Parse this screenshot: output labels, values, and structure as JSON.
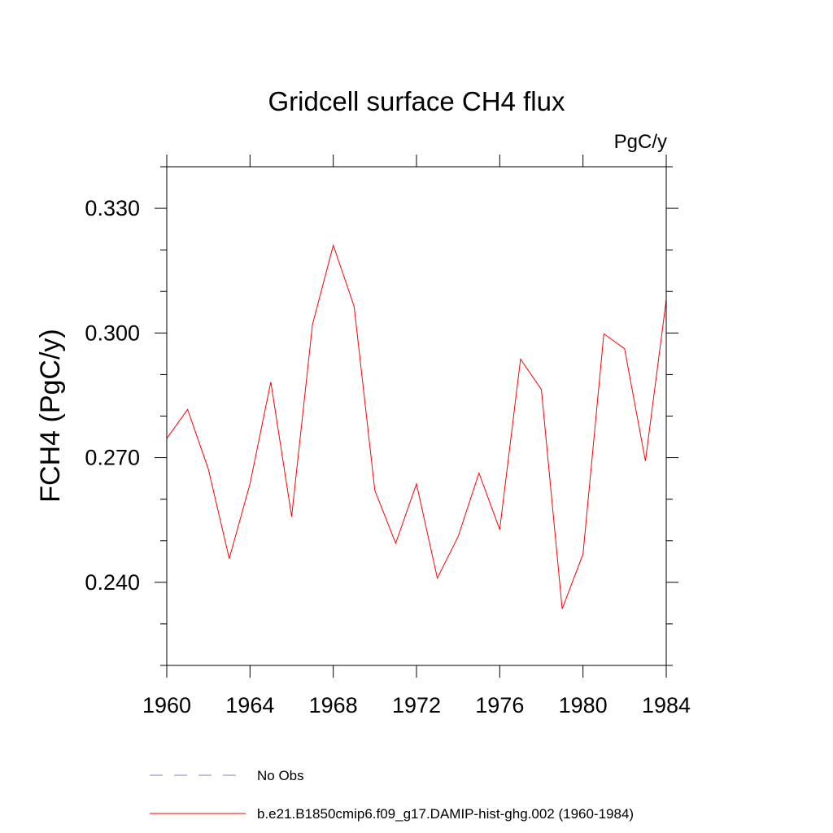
{
  "chart_data": {
    "type": "line",
    "title": "Gridcell surface CH4 flux",
    "units_label": "PgC/y",
    "ylabel": "FCH4  (PgC/y)",
    "xlabel": "",
    "xlim": [
      1960,
      1984
    ],
    "ylim": [
      0.22,
      0.34
    ],
    "x_ticks": [
      1960,
      1964,
      1968,
      1972,
      1976,
      1980,
      1984
    ],
    "x_tick_labels": [
      "1960",
      "1964",
      "1968",
      "1972",
      "1976",
      "1980",
      "1984"
    ],
    "y_ticks": [
      0.24,
      0.27,
      0.3,
      0.33
    ],
    "y_tick_labels": [
      "0.240",
      "0.270",
      "0.300",
      "0.330"
    ],
    "y_minor_step": 0.01,
    "grid": false,
    "legend_position": "bottom",
    "legend": [
      {
        "label": "No Obs",
        "style": "dashed",
        "color": "#7f7fbf"
      },
      {
        "label": "b.e21.B1850cmip6.f09_g17.DAMIP-hist-ghg.002 (1960-1984)",
        "style": "solid",
        "color": "#ff0000"
      }
    ],
    "series": [
      {
        "name": "b.e21.B1850cmip6.f09_g17.DAMIP-hist-ghg.002 (1960-1984)",
        "color": "#ff0000",
        "x": [
          1960,
          1961,
          1962,
          1963,
          1964,
          1965,
          1966,
          1967,
          1968,
          1969,
          1970,
          1971,
          1972,
          1973,
          1974,
          1975,
          1976,
          1977,
          1978,
          1979,
          1980,
          1981,
          1982,
          1983,
          1984
        ],
        "values": [
          0.2746,
          0.2816,
          0.2672,
          0.2457,
          0.2637,
          0.2882,
          0.2558,
          0.302,
          0.3211,
          0.3064,
          0.2621,
          0.2494,
          0.2637,
          0.241,
          0.251,
          0.2663,
          0.2527,
          0.2937,
          0.2864,
          0.2336,
          0.2468,
          0.2998,
          0.2962,
          0.2692,
          0.308
        ]
      }
    ]
  }
}
